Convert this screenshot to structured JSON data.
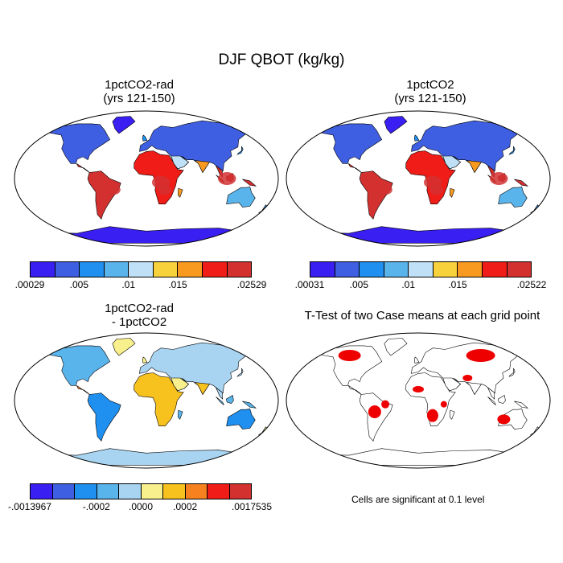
{
  "title": "DJF QBOT (kg/kg)",
  "panels": [
    {
      "id": "p1",
      "title": "1pctCO2-rad\n(yrs 121-150)",
      "kind": "field",
      "colorbar": {
        "colors": [
          "#3a1ff2",
          "#3f5fe3",
          "#1f8ff0",
          "#5ab4ec",
          "#bfe0f6",
          "#f8d23c",
          "#f79a1f",
          "#ef1c17",
          "#d33030"
        ],
        "labels": [
          ".00029",
          ".005",
          ".01",
          ".015",
          ".02529"
        ]
      }
    },
    {
      "id": "p2",
      "title": "1pctCO2\n(yrs 121-150)",
      "kind": "field",
      "colorbar": {
        "colors": [
          "#3a1ff2",
          "#3f5fe3",
          "#1f8ff0",
          "#5ab4ec",
          "#bfe0f6",
          "#f8d23c",
          "#f79a1f",
          "#ef1c17",
          "#d33030"
        ],
        "labels": [
          ".00031",
          ".005",
          ".01",
          ".015",
          ".02522"
        ]
      }
    },
    {
      "id": "p3",
      "title": "1pctCO2-rad\n- 1pctCO2",
      "kind": "diff",
      "colorbar": {
        "colors": [
          "#3a1ff2",
          "#3f5fe3",
          "#1f8ff0",
          "#5ab4ec",
          "#a8d4f2",
          "#f8f08c",
          "#f8c21e",
          "#f7811f",
          "#ef1c17",
          "#d33030"
        ],
        "labels": [
          "-.0013967",
          "-.0002",
          ".0000",
          ".0002",
          ".0017535"
        ]
      }
    },
    {
      "id": "p4",
      "title": "T-Test of two Case means at each grid point",
      "kind": "ttest",
      "note": "Cells are significant at 0.1 level",
      "sig_color": "#ee0000"
    }
  ]
}
